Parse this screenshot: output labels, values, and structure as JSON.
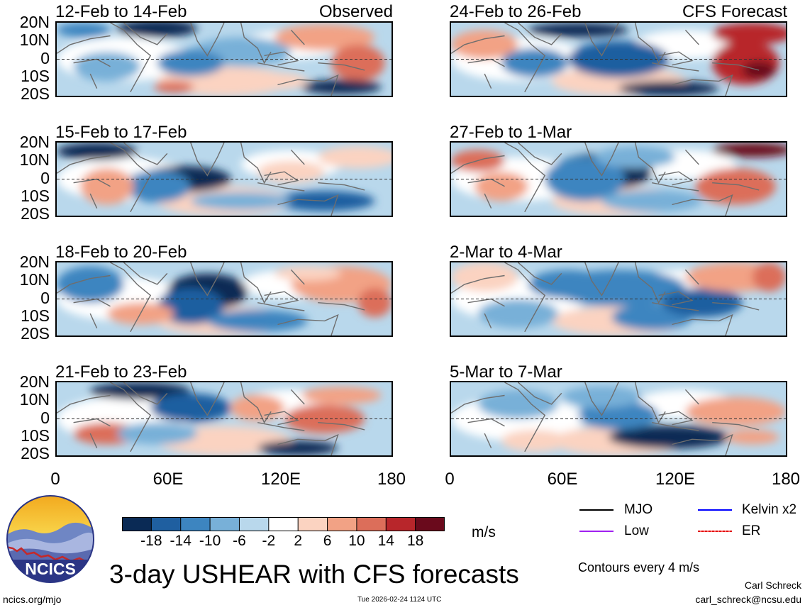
{
  "chart_data": {
    "type": "heatmap",
    "title": "3-day USHEAR with CFS forecasts",
    "variable": "USHEAR",
    "units": "m/s",
    "contour_note": "Contours every 4 m/s",
    "xrange": [
      0,
      180
    ],
    "yrange": [
      -20,
      20
    ],
    "x_ticks": [
      "0",
      "60E",
      "120E",
      "180"
    ],
    "y_ticks": [
      "20N",
      "10N",
      "0",
      "10S",
      "20S"
    ],
    "column_headers": [
      "Observed",
      "CFS Forecast"
    ],
    "colorbar": {
      "labels": [
        "-18",
        "-14",
        "-10",
        "-6",
        "-2",
        "2",
        "6",
        "10",
        "14",
        "18"
      ],
      "colors": [
        "#0a2a55",
        "#1f5fa0",
        "#3d85c0",
        "#78b0d8",
        "#b9d8ec",
        "#ffffff",
        "#fbd3c1",
        "#f2a285",
        "#dc6e5a",
        "#b8262b",
        "#6a0a1c"
      ]
    },
    "legend": [
      {
        "name": "MJO",
        "color": "#000000"
      },
      {
        "name": "Kelvin x2",
        "color": "#0000ff"
      },
      {
        "name": "Low",
        "color": "#a020f0"
      },
      {
        "name": "ER",
        "color": "#e00000"
      }
    ],
    "panels": [
      {
        "period": "12-Feb to 14-Feb",
        "source": "Observed"
      },
      {
        "period": "15-Feb to 17-Feb",
        "source": "Observed"
      },
      {
        "period": "18-Feb to 20-Feb",
        "source": "Observed"
      },
      {
        "period": "21-Feb to 23-Feb",
        "source": "Observed"
      },
      {
        "period": "24-Feb to 26-Feb",
        "source": "CFS Forecast"
      },
      {
        "period": "27-Feb to 1-Mar",
        "source": "CFS Forecast"
      },
      {
        "period": "2-Mar to 4-Mar",
        "source": "CFS Forecast"
      },
      {
        "period": "5-Mar to 7-Mar",
        "source": "CFS Forecast"
      }
    ]
  },
  "branding": {
    "logo_text": "NCICS",
    "site": "ncics.org/mjo",
    "timestamp": "Tue 2026-02-24 1124 UTC",
    "author": "Carl Schreck",
    "email": "carl_schreck@ncsu.edu"
  }
}
